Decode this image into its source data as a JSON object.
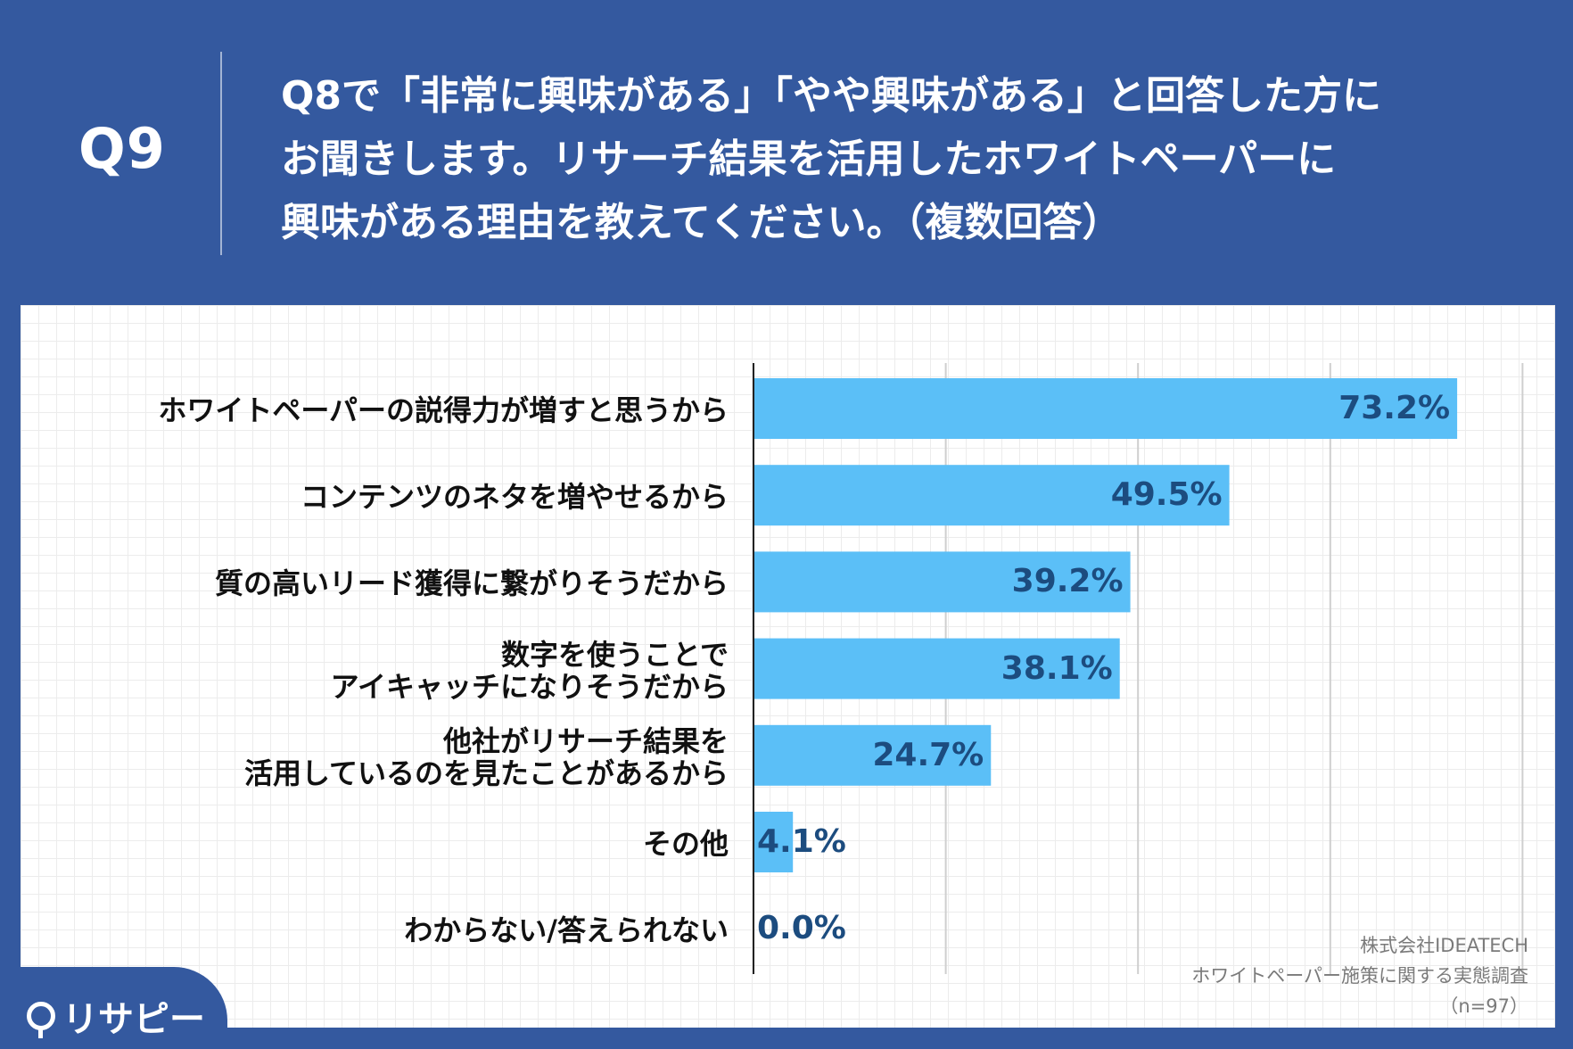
{
  "question": {
    "label": "Q9",
    "lines": [
      "Q8で「非常に興味がある」「やや興味がある」と回答した方に",
      "お聞きします。リサーチ結果を活用したホワイトペーパーに",
      "興味がある理由を教えてください。（複数回答）"
    ]
  },
  "colors": {
    "header_bg": "#34599f",
    "bar": "#5bbff7",
    "value_text": "#1c4c7f"
  },
  "chart_data": {
    "type": "bar",
    "orientation": "horizontal",
    "categories": [
      "ホワイトペーパーの説得力が増すと思うから",
      "コンテンツのネタを増やせるから",
      "質の高いリード獲得に繋がりそうだから",
      "数字を使うことで\nアイキャッチになりそうだから",
      "他社がリサーチ結果を\n活用しているのを見たことがあるから",
      "その他",
      "わからない/答えられない"
    ],
    "values": [
      73.2,
      49.5,
      39.2,
      38.1,
      24.7,
      4.1,
      0.0
    ],
    "value_labels": [
      "73.2%",
      "49.5%",
      "39.2%",
      "38.1%",
      "24.7%",
      "4.1%",
      "0.0%"
    ],
    "xlim": [
      0,
      80
    ],
    "grid": true,
    "gridline_values": [
      20,
      40,
      60,
      80
    ]
  },
  "credit": {
    "company": "株式会社IDEATECH",
    "survey": "ホワイトペーパー施策に関する実態調査",
    "sample": "（n=97）"
  },
  "logo": {
    "text": "リサピー"
  }
}
